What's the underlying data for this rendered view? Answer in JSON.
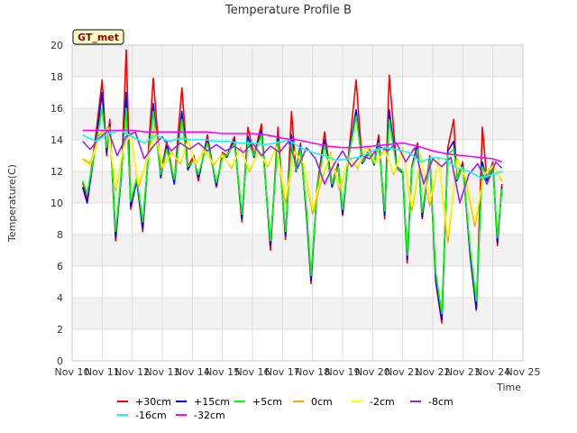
{
  "chart_data": {
    "type": "line",
    "title": "Temperature Profile B",
    "xlabel": "Time",
    "ylabel": "Temperature(C)",
    "site_label": "GT_met",
    "xlim": [
      0,
      15
    ],
    "ylim": [
      0,
      20
    ],
    "x_ticks": [
      {
        "x": 0,
        "label": "Nov 10"
      },
      {
        "x": 1,
        "label": "Nov 11"
      },
      {
        "x": 2,
        "label": "Nov 12"
      },
      {
        "x": 3,
        "label": "Nov 13"
      },
      {
        "x": 4,
        "label": "Nov 14"
      },
      {
        "x": 5,
        "label": "Nov 15"
      },
      {
        "x": 6,
        "label": "Nov 16"
      },
      {
        "x": 7,
        "label": "Nov 17"
      },
      {
        "x": 8,
        "label": "Nov 18"
      },
      {
        "x": 9,
        "label": "Nov 19"
      },
      {
        "x": 10,
        "label": "Nov 20"
      },
      {
        "x": 11,
        "label": "Nov 21"
      },
      {
        "x": 12,
        "label": "Nov 22"
      },
      {
        "x": 13,
        "label": "Nov 23"
      },
      {
        "x": 14,
        "label": "Nov 24"
      },
      {
        "x": 15,
        "label": "Nov 25"
      }
    ],
    "y_ticks": [
      {
        "y": 0,
        "label": "0"
      },
      {
        "y": 2,
        "label": "2"
      },
      {
        "y": 4,
        "label": "4"
      },
      {
        "y": 6,
        "label": "6"
      },
      {
        "y": 8,
        "label": "8"
      },
      {
        "y": 10,
        "label": "10"
      },
      {
        "y": 12,
        "label": "12"
      },
      {
        "y": 14,
        "label": "14"
      },
      {
        "y": 16,
        "label": "16"
      },
      {
        "y": 18,
        "label": "18"
      },
      {
        "y": 20,
        "label": "20"
      }
    ],
    "grid": true,
    "legend_position": "bottom",
    "series": [
      {
        "name": "+30cm",
        "color": "#ff0000",
        "x": [
          0.35,
          0.5,
          0.8,
          1.0,
          1.15,
          1.25,
          1.45,
          1.65,
          1.8,
          1.95,
          2.15,
          2.35,
          2.5,
          2.7,
          2.95,
          3.15,
          3.4,
          3.65,
          3.85,
          4.05,
          4.2,
          4.5,
          4.8,
          5.0,
          5.15,
          5.4,
          5.65,
          5.85,
          6.05,
          6.3,
          6.6,
          6.85,
          7.1,
          7.3,
          7.45,
          7.6,
          7.8,
          7.95,
          8.15,
          8.4,
          8.65,
          8.85,
          9.0,
          9.2,
          9.45,
          9.65,
          9.9,
          10.05,
          10.2,
          10.4,
          10.55,
          10.8,
          11.0,
          11.15,
          11.3,
          11.5,
          11.65,
          11.9,
          12.1,
          12.3,
          12.5,
          12.7,
          12.8,
          13.0,
          13.25,
          13.45,
          13.65,
          13.8,
          14.0,
          14.15,
          14.3
        ],
        "y": [
          11.3,
          10.2,
          14.5,
          17.8,
          13.0,
          15.3,
          7.6,
          12.2,
          19.7,
          9.6,
          11.5,
          8.2,
          12.2,
          17.9,
          11.8,
          13.9,
          11.3,
          17.3,
          12.3,
          13.0,
          11.4,
          14.3,
          11.0,
          13.2,
          13.0,
          14.2,
          8.8,
          14.8,
          13.0,
          15.0,
          7.0,
          14.8,
          7.7,
          15.8,
          12.0,
          13.8,
          9.2,
          4.9,
          11.0,
          14.5,
          11.2,
          12.5,
          9.2,
          13.1,
          17.8,
          12.6,
          13.4,
          12.5,
          14.3,
          9.0,
          18.1,
          12.3,
          12.0,
          6.2,
          12.3,
          13.8,
          9.0,
          13.0,
          5.0,
          2.4,
          13.5,
          15.3,
          11.5,
          12.6,
          6.5,
          3.2,
          14.8,
          11.5,
          12.6,
          7.3,
          11.2
        ]
      },
      {
        "name": "+15cm",
        "color": "#0000ff",
        "x": [
          0.35,
          0.5,
          0.8,
          1.0,
          1.15,
          1.25,
          1.45,
          1.65,
          1.8,
          1.95,
          2.15,
          2.35,
          2.5,
          2.7,
          2.95,
          3.15,
          3.4,
          3.65,
          3.85,
          4.05,
          4.2,
          4.5,
          4.8,
          5.0,
          5.15,
          5.4,
          5.65,
          5.85,
          6.05,
          6.3,
          6.6,
          6.85,
          7.1,
          7.3,
          7.45,
          7.6,
          7.8,
          7.95,
          8.15,
          8.4,
          8.65,
          8.85,
          9.0,
          9.2,
          9.45,
          9.65,
          9.9,
          10.05,
          10.2,
          10.4,
          10.55,
          10.8,
          11.0,
          11.15,
          11.3,
          11.5,
          11.65,
          11.9,
          12.1,
          12.3,
          12.5,
          12.7,
          12.8,
          13.0,
          13.25,
          13.45,
          13.65,
          13.8,
          14.0,
          14.15,
          14.3
        ],
        "y": [
          11.0,
          10.0,
          14.0,
          17.0,
          13.2,
          15.0,
          7.8,
          12.0,
          17.0,
          9.8,
          11.4,
          8.4,
          12.1,
          16.3,
          11.6,
          13.6,
          11.2,
          15.8,
          12.1,
          12.8,
          11.6,
          14.0,
          11.1,
          13.0,
          12.9,
          14.0,
          9.0,
          14.2,
          12.9,
          14.6,
          7.3,
          14.2,
          7.9,
          14.3,
          12.0,
          13.6,
          9.3,
          5.1,
          10.8,
          14.0,
          11.0,
          12.4,
          9.3,
          13.0,
          15.9,
          12.5,
          13.2,
          12.4,
          14.0,
          9.2,
          15.9,
          12.2,
          11.9,
          6.4,
          12.2,
          13.6,
          9.1,
          12.8,
          5.2,
          2.6,
          13.3,
          13.9,
          11.4,
          12.4,
          6.6,
          3.3,
          12.6,
          11.4,
          12.4,
          7.5,
          11.0
        ]
      },
      {
        "name": "+5cm",
        "color": "#00ff00",
        "x": [
          0.35,
          0.5,
          0.8,
          1.0,
          1.15,
          1.25,
          1.45,
          1.65,
          1.8,
          1.95,
          2.15,
          2.35,
          2.5,
          2.7,
          2.95,
          3.15,
          3.4,
          3.65,
          3.85,
          4.05,
          4.2,
          4.5,
          4.8,
          5.0,
          5.15,
          5.4,
          5.65,
          5.85,
          6.05,
          6.3,
          6.6,
          6.85,
          7.1,
          7.3,
          7.45,
          7.6,
          7.8,
          7.95,
          8.15,
          8.4,
          8.65,
          8.85,
          9.0,
          9.2,
          9.45,
          9.65,
          9.9,
          10.05,
          10.2,
          10.4,
          10.55,
          10.8,
          11.0,
          11.15,
          11.3,
          11.5,
          11.65,
          11.9,
          12.1,
          12.3,
          12.5,
          12.7,
          12.8,
          13.0,
          13.25,
          13.45,
          13.65,
          13.8,
          14.0,
          14.15,
          14.3
        ],
        "y": [
          11.4,
          10.6,
          13.8,
          16.0,
          13.5,
          14.8,
          8.2,
          12.1,
          16.0,
          10.1,
          11.6,
          8.8,
          12.2,
          15.8,
          11.8,
          13.4,
          11.5,
          15.3,
          12.3,
          12.7,
          11.8,
          13.8,
          11.3,
          12.9,
          13.0,
          13.8,
          9.3,
          13.9,
          13.0,
          14.3,
          7.6,
          13.9,
          8.2,
          13.8,
          12.1,
          13.4,
          9.6,
          5.4,
          10.9,
          13.7,
          11.2,
          12.3,
          9.6,
          12.9,
          15.5,
          12.6,
          13.1,
          12.5,
          13.8,
          9.5,
          15.3,
          12.2,
          12.0,
          6.7,
          12.2,
          13.4,
          9.4,
          12.7,
          5.6,
          3.0,
          13.1,
          13.4,
          11.5,
          12.3,
          7.0,
          3.8,
          12.3,
          11.6,
          12.3,
          7.8,
          10.9
        ]
      },
      {
        "name": "0cm",
        "color": "#ffa500",
        "x": [
          0.35,
          0.6,
          0.9,
          1.2,
          1.45,
          1.7,
          1.95,
          2.2,
          2.5,
          2.75,
          3.0,
          3.3,
          3.6,
          3.85,
          4.1,
          4.4,
          4.7,
          5.0,
          5.3,
          5.6,
          5.9,
          6.2,
          6.5,
          6.8,
          7.1,
          7.4,
          7.7,
          8.0,
          8.3,
          8.6,
          8.9,
          9.2,
          9.5,
          9.8,
          10.1,
          10.4,
          10.7,
          11.0,
          11.3,
          11.6,
          11.9,
          12.2,
          12.5,
          12.8,
          13.1,
          13.4,
          13.7,
          14.0,
          14.3
        ],
        "y": [
          12.8,
          12.5,
          14.3,
          14.8,
          10.8,
          13.5,
          14.5,
          11.0,
          12.8,
          14.8,
          12.2,
          13.2,
          12.5,
          14.0,
          12.4,
          13.4,
          12.4,
          13.1,
          12.2,
          13.5,
          12.0,
          13.3,
          12.3,
          13.6,
          10.0,
          13.3,
          12.5,
          9.3,
          11.5,
          13.2,
          10.8,
          12.9,
          12.2,
          13.6,
          12.5,
          13.4,
          11.8,
          13.5,
          9.5,
          13.0,
          9.8,
          12.8,
          7.5,
          12.8,
          11.5,
          8.5,
          11.8,
          12.4,
          11.4
        ]
      },
      {
        "name": "-2cm",
        "color": "#ffff00",
        "x": [
          0.35,
          0.6,
          0.9,
          1.2,
          1.45,
          1.7,
          1.95,
          2.2,
          2.5,
          2.75,
          3.0,
          3.3,
          3.6,
          3.85,
          4.1,
          4.4,
          4.7,
          5.0,
          5.3,
          5.6,
          5.9,
          6.2,
          6.5,
          6.8,
          7.1,
          7.4,
          7.7,
          8.0,
          8.3,
          8.6,
          8.9,
          9.2,
          9.5,
          9.8,
          10.1,
          10.4,
          10.7,
          11.0,
          11.3,
          11.6,
          11.9,
          12.2,
          12.5,
          12.8,
          13.1,
          13.4,
          13.7,
          14.0,
          14.3
        ],
        "y": [
          12.7,
          12.4,
          14.2,
          14.7,
          11.0,
          13.4,
          14.4,
          11.2,
          12.7,
          14.6,
          12.3,
          13.1,
          12.6,
          13.9,
          12.5,
          13.3,
          12.5,
          13.0,
          12.3,
          13.4,
          12.1,
          13.2,
          12.4,
          13.5,
          10.3,
          13.2,
          12.5,
          9.6,
          11.7,
          13.1,
          11.0,
          12.8,
          12.3,
          13.5,
          12.5,
          13.3,
          11.9,
          13.4,
          9.8,
          12.9,
          10.1,
          12.7,
          7.9,
          12.7,
          11.6,
          8.8,
          11.8,
          12.3,
          11.5
        ]
      },
      {
        "name": "-8cm",
        "color": "#a020f0",
        "x": [
          0.35,
          0.6,
          0.9,
          1.2,
          1.5,
          1.8,
          2.1,
          2.4,
          2.7,
          3.0,
          3.3,
          3.6,
          3.9,
          4.2,
          4.5,
          4.8,
          5.1,
          5.4,
          5.7,
          6.0,
          6.3,
          6.6,
          6.9,
          7.2,
          7.5,
          7.8,
          8.1,
          8.4,
          8.7,
          9.0,
          9.3,
          9.6,
          9.9,
          10.2,
          10.5,
          10.8,
          11.1,
          11.4,
          11.7,
          12.0,
          12.3,
          12.6,
          12.9,
          13.2,
          13.5,
          13.8,
          14.1,
          14.3
        ],
        "y": [
          13.9,
          13.4,
          14.1,
          14.6,
          13.0,
          14.2,
          14.5,
          12.8,
          13.6,
          14.2,
          13.3,
          13.8,
          13.4,
          13.8,
          13.3,
          13.7,
          13.3,
          13.6,
          13.2,
          13.8,
          13.0,
          13.6,
          13.2,
          13.9,
          12.2,
          13.5,
          12.8,
          11.2,
          12.4,
          13.3,
          12.3,
          13.0,
          12.8,
          13.6,
          13.3,
          13.8,
          12.6,
          13.5,
          11.2,
          12.8,
          12.3,
          12.9,
          10.0,
          11.8,
          12.5,
          11.2,
          12.6,
          12.2
        ]
      },
      {
        "name": "-16cm",
        "color": "#00ffff",
        "x": [
          0.35,
          0.8,
          1.2,
          1.6,
          2.0,
          2.4,
          2.8,
          3.2,
          3.6,
          4.0,
          4.4,
          4.8,
          5.2,
          5.6,
          6.0,
          6.4,
          6.8,
          7.2,
          7.6,
          8.0,
          8.4,
          8.8,
          9.2,
          9.6,
          10.0,
          10.4,
          10.8,
          11.2,
          11.6,
          12.0,
          12.4,
          12.8,
          13.2,
          13.6,
          14.0,
          14.3
        ],
        "y": [
          14.3,
          13.9,
          14.4,
          14.6,
          14.2,
          13.8,
          14.3,
          13.9,
          14.1,
          14.0,
          14.0,
          13.9,
          13.9,
          13.8,
          13.8,
          13.7,
          13.8,
          14.0,
          13.5,
          13.2,
          13.0,
          12.7,
          12.8,
          12.9,
          13.3,
          13.5,
          13.4,
          13.2,
          12.6,
          12.9,
          12.8,
          12.2,
          12.0,
          11.6,
          11.8,
          12.0
        ]
      },
      {
        "name": "-32cm",
        "color": "#ff00ff",
        "x": [
          0.35,
          1.0,
          1.5,
          2.0,
          2.5,
          3.0,
          3.5,
          4.0,
          4.5,
          5.0,
          5.5,
          6.0,
          6.5,
          7.0,
          7.5,
          8.0,
          8.5,
          9.0,
          9.5,
          10.0,
          10.5,
          11.0,
          11.5,
          12.0,
          12.5,
          13.0,
          13.5,
          14.0,
          14.3
        ],
        "y": [
          14.6,
          14.6,
          14.6,
          14.6,
          14.5,
          14.5,
          14.5,
          14.5,
          14.5,
          14.4,
          14.4,
          14.4,
          14.3,
          14.1,
          14.0,
          13.8,
          13.6,
          13.5,
          13.5,
          13.6,
          13.7,
          13.8,
          13.6,
          13.3,
          13.1,
          13.0,
          12.9,
          12.8,
          12.6
        ]
      }
    ]
  }
}
